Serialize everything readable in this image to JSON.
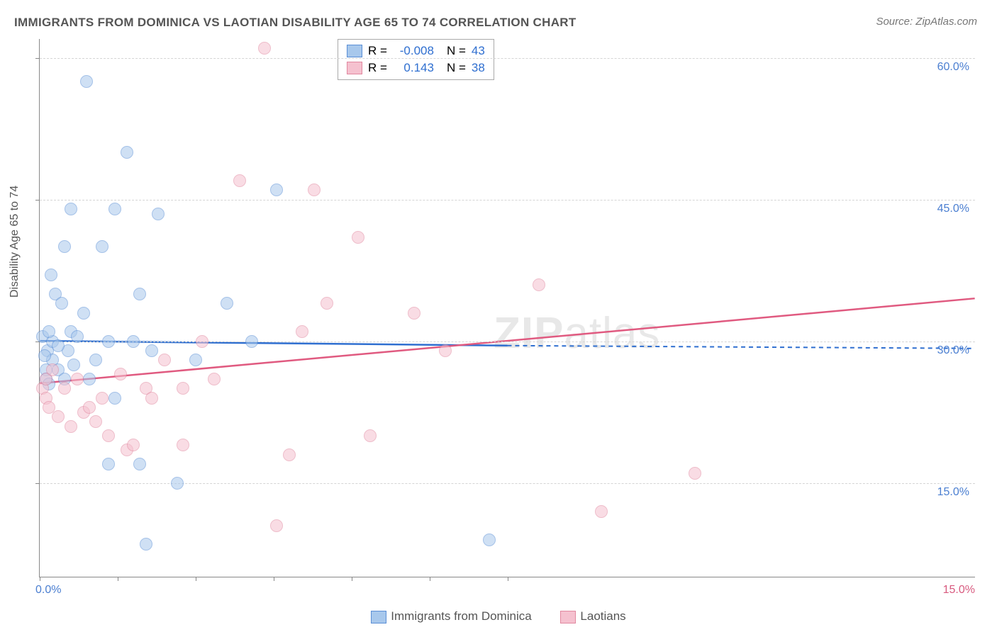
{
  "title": "IMMIGRANTS FROM DOMINICA VS LAOTIAN DISABILITY AGE 65 TO 74 CORRELATION CHART",
  "source": "Source: ZipAtlas.com",
  "ylabel": "Disability Age 65 to 74",
  "watermark_bold": "ZIP",
  "watermark_rest": "atlas",
  "chart": {
    "type": "scatter",
    "xlim": [
      0,
      15
    ],
    "ylim": [
      5,
      62
    ],
    "background_color": "#ffffff",
    "grid_color": "#d5d5d5",
    "grid_dash": "4,3",
    "axis_color": "#888888",
    "y_gridlines": [
      15,
      30,
      45,
      60
    ],
    "y_tick_labels": [
      "15.0%",
      "30.0%",
      "45.0%",
      "60.0%"
    ],
    "y_tick_color": "#4b7fd1",
    "x_ticks_minor": [
      0,
      1.25,
      2.5,
      3.75,
      5,
      6.25,
      7.5
    ],
    "x_origin_label": "0.0%",
    "x_max_label": "15.0%",
    "x_tick_color_left": "#4b7fd1",
    "x_tick_color_right": "#d85a7f",
    "marker_radius": 9,
    "marker_opacity": 0.55,
    "series": [
      {
        "name": "Immigrants from Dominica",
        "color_fill": "#a8c8ec",
        "color_stroke": "#5b8fd6",
        "R": "-0.008",
        "N": "43",
        "trend": {
          "x1": 0,
          "y1": 30.0,
          "x2": 7.5,
          "y2": 29.5,
          "x2_dash": 15,
          "y2_dash": 29.2,
          "color": "#2f6fd0",
          "width": 2.5
        },
        "points": [
          {
            "x": 0.05,
            "y": 30.5
          },
          {
            "x": 0.1,
            "y": 27
          },
          {
            "x": 0.1,
            "y": 26
          },
          {
            "x": 0.12,
            "y": 29
          },
          {
            "x": 0.15,
            "y": 25.5
          },
          {
            "x": 0.18,
            "y": 37
          },
          {
            "x": 0.2,
            "y": 30
          },
          {
            "x": 0.2,
            "y": 28
          },
          {
            "x": 0.25,
            "y": 35
          },
          {
            "x": 0.3,
            "y": 27
          },
          {
            "x": 0.35,
            "y": 34
          },
          {
            "x": 0.4,
            "y": 40
          },
          {
            "x": 0.45,
            "y": 29
          },
          {
            "x": 0.5,
            "y": 44
          },
          {
            "x": 0.5,
            "y": 31
          },
          {
            "x": 0.55,
            "y": 27.5
          },
          {
            "x": 0.6,
            "y": 30.5
          },
          {
            "x": 0.7,
            "y": 33
          },
          {
            "x": 0.75,
            "y": 57.5
          },
          {
            "x": 0.8,
            "y": 26
          },
          {
            "x": 0.9,
            "y": 28
          },
          {
            "x": 1.0,
            "y": 40
          },
          {
            "x": 1.1,
            "y": 17
          },
          {
            "x": 1.1,
            "y": 30
          },
          {
            "x": 1.2,
            "y": 24
          },
          {
            "x": 1.2,
            "y": 44
          },
          {
            "x": 1.4,
            "y": 50
          },
          {
            "x": 1.5,
            "y": 30
          },
          {
            "x": 1.6,
            "y": 35
          },
          {
            "x": 1.6,
            "y": 17
          },
          {
            "x": 1.7,
            "y": 8.5
          },
          {
            "x": 1.8,
            "y": 29
          },
          {
            "x": 1.9,
            "y": 43.5
          },
          {
            "x": 2.2,
            "y": 15
          },
          {
            "x": 2.5,
            "y": 28
          },
          {
            "x": 3.0,
            "y": 34
          },
          {
            "x": 3.4,
            "y": 30
          },
          {
            "x": 3.8,
            "y": 46
          },
          {
            "x": 7.2,
            "y": 9
          },
          {
            "x": 0.15,
            "y": 31
          },
          {
            "x": 0.08,
            "y": 28.5
          },
          {
            "x": 0.3,
            "y": 29.5
          },
          {
            "x": 0.4,
            "y": 26
          }
        ]
      },
      {
        "name": "Laotians",
        "color_fill": "#f5c1cf",
        "color_stroke": "#e188a0",
        "R": "0.143",
        "N": "38",
        "trend": {
          "x1": 0,
          "y1": 25.5,
          "x2": 15,
          "y2": 34.5,
          "color": "#e05a80",
          "width": 2.5
        },
        "points": [
          {
            "x": 0.05,
            "y": 25
          },
          {
            "x": 0.1,
            "y": 24
          },
          {
            "x": 0.1,
            "y": 26
          },
          {
            "x": 0.15,
            "y": 23
          },
          {
            "x": 0.2,
            "y": 27
          },
          {
            "x": 0.3,
            "y": 22
          },
          {
            "x": 0.4,
            "y": 25
          },
          {
            "x": 0.5,
            "y": 21
          },
          {
            "x": 0.6,
            "y": 26
          },
          {
            "x": 0.7,
            "y": 22.5
          },
          {
            "x": 0.8,
            "y": 23
          },
          {
            "x": 0.9,
            "y": 21.5
          },
          {
            "x": 1.0,
            "y": 24
          },
          {
            "x": 1.1,
            "y": 20
          },
          {
            "x": 1.3,
            "y": 26.5
          },
          {
            "x": 1.4,
            "y": 18.5
          },
          {
            "x": 1.5,
            "y": 19
          },
          {
            "x": 1.7,
            "y": 25
          },
          {
            "x": 1.8,
            "y": 24
          },
          {
            "x": 2.0,
            "y": 28
          },
          {
            "x": 2.3,
            "y": 19
          },
          {
            "x": 2.3,
            "y": 25
          },
          {
            "x": 2.6,
            "y": 30
          },
          {
            "x": 2.8,
            "y": 26
          },
          {
            "x": 3.2,
            "y": 47
          },
          {
            "x": 3.6,
            "y": 61
          },
          {
            "x": 3.8,
            "y": 10.5
          },
          {
            "x": 4.0,
            "y": 18
          },
          {
            "x": 4.2,
            "y": 31
          },
          {
            "x": 4.4,
            "y": 46
          },
          {
            "x": 4.6,
            "y": 34
          },
          {
            "x": 5.1,
            "y": 41
          },
          {
            "x": 5.3,
            "y": 20
          },
          {
            "x": 6.0,
            "y": 33
          },
          {
            "x": 6.5,
            "y": 29
          },
          {
            "x": 8.0,
            "y": 36
          },
          {
            "x": 9.0,
            "y": 12
          },
          {
            "x": 10.5,
            "y": 16
          }
        ]
      }
    ]
  },
  "legend_top": {
    "R_label": "R =",
    "N_label": "N =",
    "value_color": "#2f6fd0"
  },
  "legend_bottom": {
    "items": [
      "Immigrants from Dominica",
      "Laotians"
    ]
  }
}
